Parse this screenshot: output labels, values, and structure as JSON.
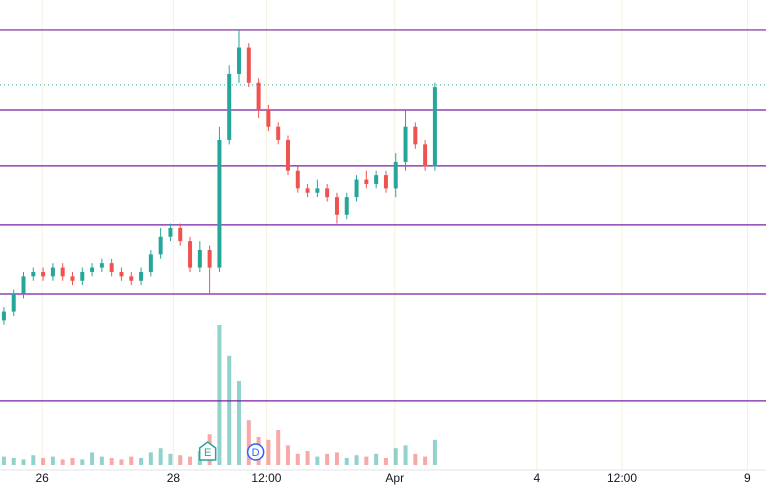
{
  "chart_data": {
    "type": "candlestick",
    "xlim": [
      -0.4,
      77.8
    ],
    "xticks": [
      {
        "value": 3.9,
        "label": "26"
      },
      {
        "value": 17.3,
        "label": "28"
      },
      {
        "value": 26.8,
        "label": "12:00"
      },
      {
        "value": 39.9,
        "label": "Apr"
      },
      {
        "value": 54.4,
        "label": "4"
      },
      {
        "value": 63.1,
        "label": "12:00"
      },
      {
        "value": 75.9,
        "label": "9"
      }
    ],
    "ylim": [
      0,
      106.8
    ],
    "vlim": [
      0,
      100
    ],
    "up_color": "#26a69a",
    "down_color": "#ef5350",
    "level_color": "#7b1fa2",
    "last_price_color": "#26a69a",
    "open": [
      34,
      36,
      40,
      44,
      45,
      44,
      46,
      44,
      43,
      45,
      46,
      47,
      45,
      44,
      43,
      45,
      49,
      53,
      55,
      52,
      46,
      50,
      46,
      75,
      90,
      96,
      88,
      82,
      78,
      75,
      68,
      64,
      63,
      64,
      62,
      58,
      62,
      66,
      65,
      67,
      64,
      70,
      78,
      74,
      69
    ],
    "high": [
      37,
      41,
      45,
      46,
      46,
      47,
      47,
      45,
      46,
      47,
      48,
      48,
      46,
      45,
      46,
      50,
      55,
      56,
      56,
      53,
      52,
      51,
      78,
      92,
      100,
      97,
      89,
      83,
      79,
      76,
      69,
      65,
      66,
      65,
      63,
      63,
      67,
      68,
      68,
      68,
      72,
      82,
      79,
      75,
      88
    ],
    "low": [
      33,
      35,
      39,
      43,
      43,
      43,
      43,
      42,
      42,
      44,
      45,
      44,
      43,
      42,
      42,
      44,
      48,
      52,
      51,
      45,
      45,
      40,
      45,
      74,
      88,
      87,
      80,
      77,
      74,
      67,
      63,
      62,
      62,
      61,
      56,
      57,
      61,
      64,
      64,
      63,
      62,
      68,
      73,
      68,
      68
    ],
    "close": [
      36,
      40,
      44,
      45,
      44,
      46,
      44,
      43,
      45,
      46,
      47,
      45,
      44,
      43,
      45,
      49,
      53,
      55,
      52,
      46,
      50,
      46,
      75,
      90,
      96,
      88,
      82,
      78,
      75,
      68,
      64,
      63,
      64,
      62,
      58,
      62,
      66,
      65,
      67,
      64,
      70,
      78,
      74,
      69,
      87
    ],
    "volume": [
      6,
      5,
      4,
      7,
      5,
      6,
      4,
      5,
      4,
      9,
      6,
      5,
      4,
      6,
      5,
      9,
      12,
      8,
      7,
      6,
      10,
      22,
      100,
      78,
      60,
      32,
      20,
      18,
      25,
      14,
      8,
      10,
      6,
      8,
      9,
      5,
      7,
      6,
      8,
      5,
      12,
      14,
      8,
      6,
      18
    ],
    "levels": [
      100,
      81.8,
      69.1,
      55.7,
      40,
      15.7
    ],
    "last_price": 87.5,
    "events": [
      {
        "label": "E",
        "x": 20.8
      },
      {
        "label": "D",
        "x": 25.7
      }
    ]
  }
}
